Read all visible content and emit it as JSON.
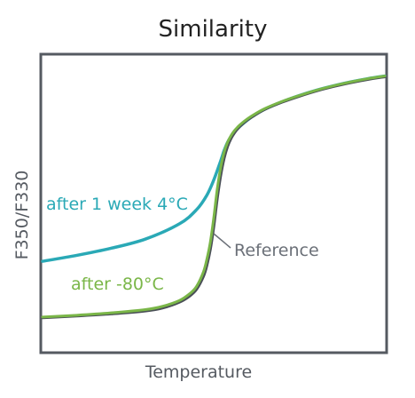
{
  "chart_data": {
    "type": "line",
    "title": "Similarity",
    "xlabel": "Temperature",
    "ylabel": "F350/F330",
    "xlim": [
      0,
      100
    ],
    "ylim": [
      0,
      100
    ],
    "grid": false,
    "legend": "none",
    "series": [
      {
        "name": "after 1 week 4°C",
        "color": "#2aa9b6",
        "x": [
          0,
          10,
          20,
          30,
          40,
          45,
          48,
          50,
          52,
          53,
          54,
          55,
          56,
          57,
          58,
          60,
          62,
          65,
          70,
          75,
          80,
          85,
          90,
          95,
          100
        ],
        "y": [
          30.4,
          32.4,
          34.8,
          37.9,
          43.1,
          47.9,
          52.8,
          57.9,
          64.3,
          67.8,
          70.6,
          72.6,
          74.2,
          75.4,
          76.5,
          78.4,
          80.0,
          82.0,
          84.5,
          86.6,
          88.4,
          89.9,
          91.2,
          92.3,
          93.2
        ]
      },
      {
        "name": "after -80°C",
        "color": "#7ab648",
        "x": [
          0,
          10,
          20,
          30,
          35,
          40,
          43,
          45,
          47,
          48,
          49,
          50,
          51,
          52,
          53,
          54,
          55,
          56,
          57,
          58,
          60,
          62,
          65,
          70,
          75,
          80,
          85,
          90,
          95,
          100
        ],
        "y": [
          11.5,
          12.1,
          12.9,
          14.0,
          15.1,
          17.1,
          19.4,
          21.9,
          26.8,
          31.1,
          36.8,
          45.0,
          54.6,
          61.9,
          67.2,
          70.6,
          72.9,
          74.6,
          75.9,
          77.0,
          78.8,
          80.3,
          82.2,
          84.6,
          86.6,
          88.4,
          89.9,
          91.2,
          92.3,
          93.2
        ]
      },
      {
        "name": "Reference",
        "color": "#4a4f57",
        "x": [
          0,
          10,
          20,
          30,
          35,
          40,
          43,
          45,
          47,
          48,
          49,
          50,
          51,
          52,
          53,
          54,
          55,
          56,
          57,
          58,
          60,
          62,
          65,
          70,
          75,
          80,
          85,
          90,
          95,
          100
        ],
        "y": [
          11.3,
          11.9,
          12.6,
          13.6,
          14.6,
          16.6,
          18.7,
          21.0,
          25.4,
          29.2,
          34.6,
          42.3,
          51.7,
          59.5,
          65.3,
          69.3,
          72.0,
          73.9,
          75.4,
          76.6,
          78.5,
          80.0,
          82.0,
          84.4,
          86.4,
          88.2,
          89.7,
          91.0,
          92.1,
          93.0
        ]
      }
    ],
    "annotations": [
      {
        "text": "after 1 week 4°C",
        "color": "#2aa9b6"
      },
      {
        "text": "Reference",
        "color": "#6b7078"
      },
      {
        "text": "after -80°C",
        "color": "#7ab648"
      }
    ]
  }
}
